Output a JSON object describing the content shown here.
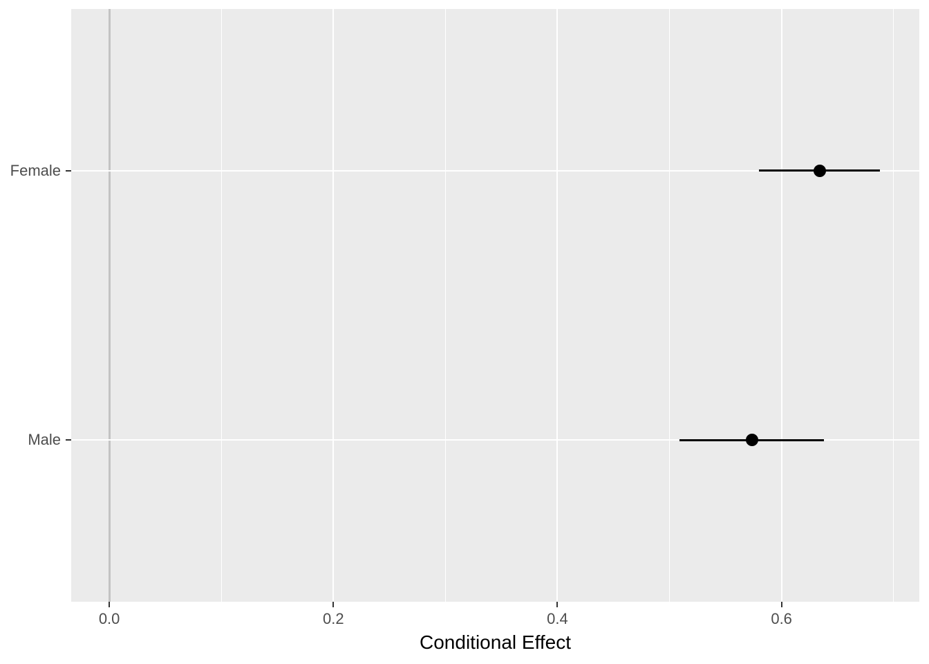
{
  "chart_data": {
    "type": "scatter",
    "subtype": "pointrange-horizontal",
    "title": "",
    "xlabel": "Conditional Effect",
    "ylabel": "",
    "categories": [
      "Female",
      "Male"
    ],
    "series": [
      {
        "name": "conditional-effect-estimates",
        "points": [
          {
            "category": "Female",
            "y_pos": 2,
            "estimate": 0.634,
            "ci_low": 0.58,
            "ci_high": 0.688
          },
          {
            "category": "Male",
            "y_pos": 1,
            "estimate": 0.574,
            "ci_low": 0.509,
            "ci_high": 0.638
          }
        ]
      }
    ],
    "x_ticks": [
      {
        "label": "0.0",
        "value": 0.0
      },
      {
        "label": "0.2",
        "value": 0.2
      },
      {
        "label": "0.4",
        "value": 0.4
      },
      {
        "label": "0.6",
        "value": 0.6
      }
    ],
    "x_minor_gridlines": [
      0.1,
      0.3,
      0.5,
      0.7
    ],
    "xlim": [
      -0.034,
      0.723
    ],
    "ylim": [
      0.4,
      2.6
    ],
    "reference_line_x": 0.0,
    "grid": "major-and-minor",
    "legend": "none",
    "colors": {
      "page_background": "#FFFFFF",
      "panel_background": "#EBEBEB",
      "grid_major": "#FFFFFF",
      "grid_minor": "#FFFFFF",
      "reference_line": "#C3C3C3",
      "point": "#000000",
      "error_bar": "#000000",
      "axis_text": "#4D4D4D",
      "axis_title": "#000000",
      "tick_mark": "#333333"
    }
  }
}
